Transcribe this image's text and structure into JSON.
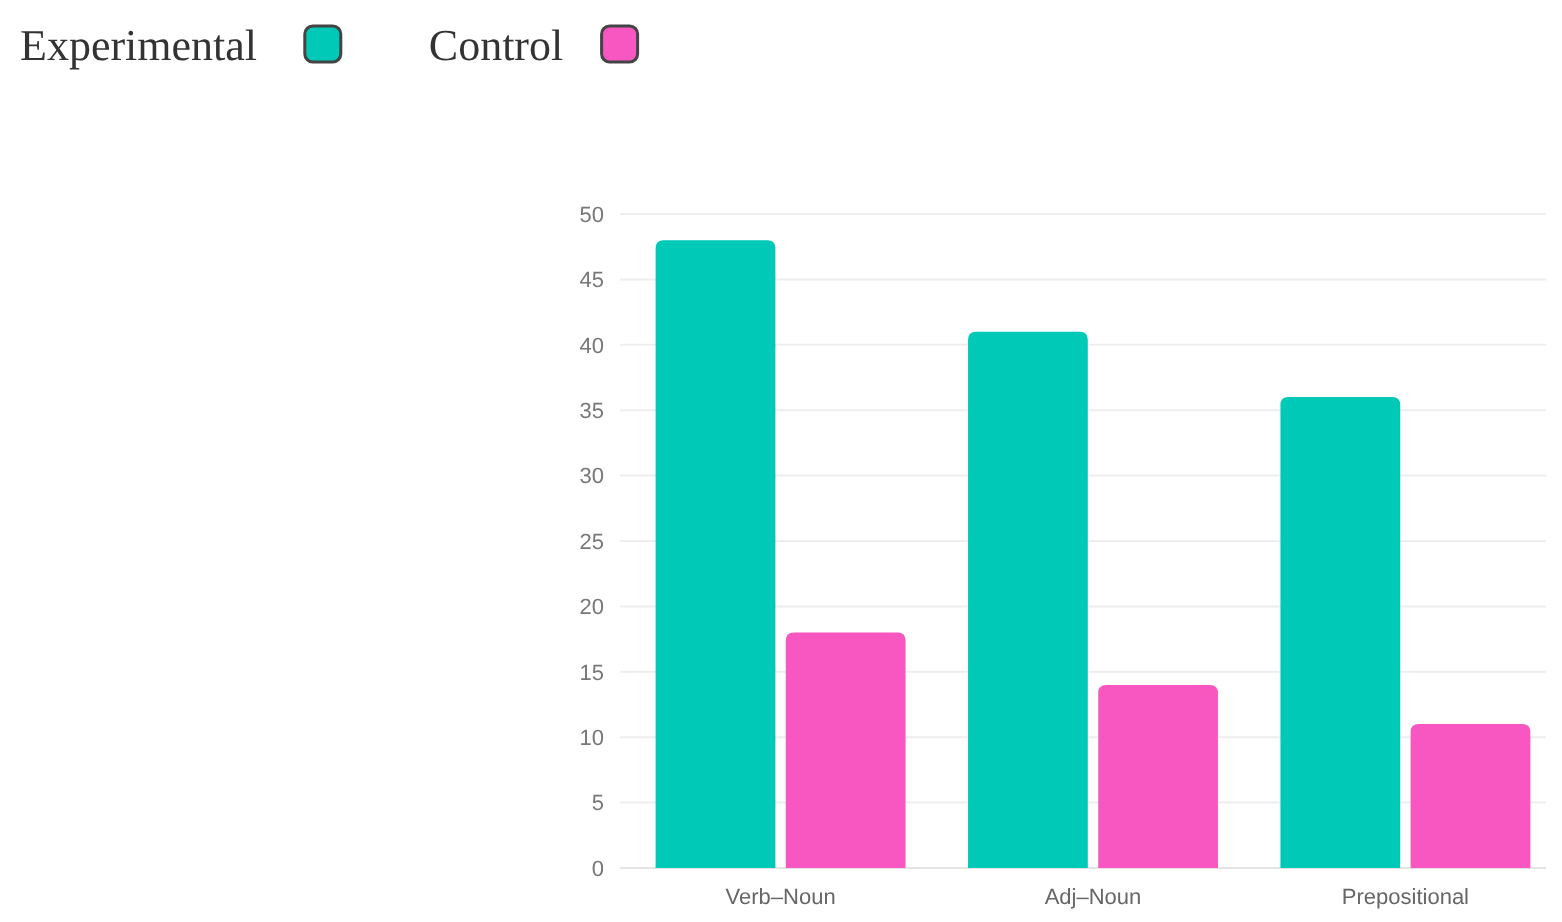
{
  "chart_data": {
    "type": "bar",
    "categories": [
      "Verb–Noun",
      "Adj–Noun",
      "Prepositional"
    ],
    "series": [
      {
        "name": "Experimental",
        "color": "#00c9b7",
        "values": [
          48,
          41,
          36
        ]
      },
      {
        "name": "Control",
        "color": "#f857c1",
        "values": [
          18,
          14,
          11
        ]
      }
    ],
    "ylim": [
      0,
      50
    ],
    "yticks": [
      0,
      5,
      10,
      15,
      20,
      25,
      30,
      35,
      40,
      45,
      50
    ],
    "grid": "y",
    "legend": "top left"
  }
}
